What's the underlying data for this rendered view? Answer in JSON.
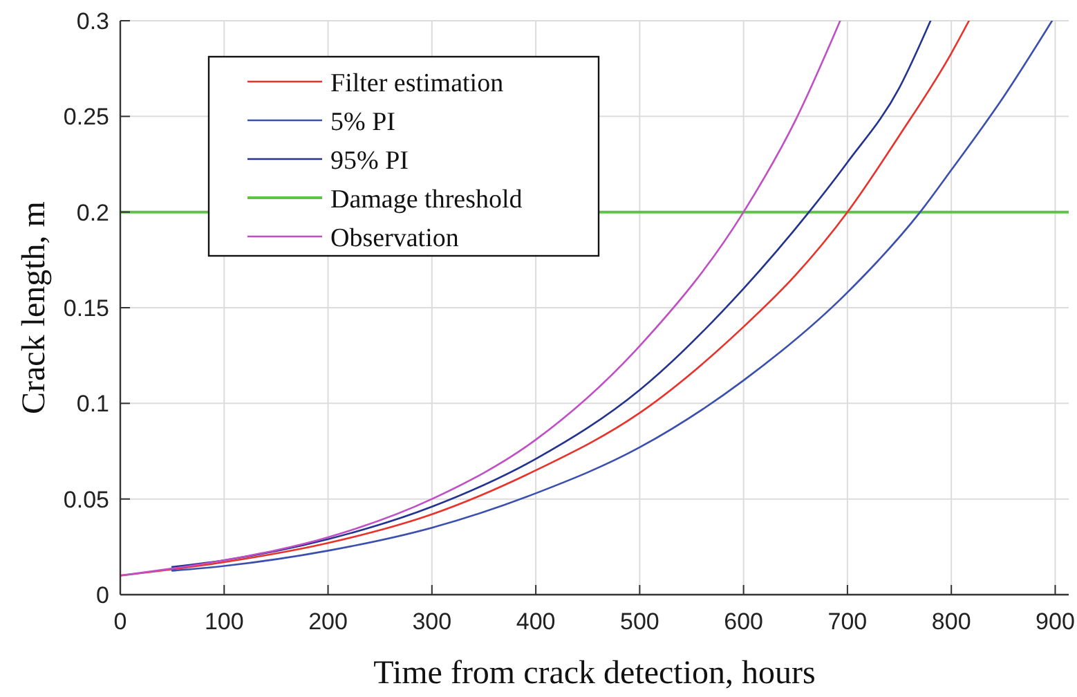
{
  "chart_data": {
    "type": "line",
    "xlabel": "Time from crack detection, hours",
    "ylabel": "Crack length, m",
    "xlim": [
      0,
      913
    ],
    "ylim": [
      0,
      0.3
    ],
    "xticks": [
      0,
      100,
      200,
      300,
      400,
      500,
      600,
      700,
      800,
      900
    ],
    "yticks": [
      0,
      0.05,
      0.1,
      0.15,
      0.2,
      0.25,
      0.3
    ],
    "grid": true,
    "legend": "top left",
    "marker": "none",
    "line_style": "solid",
    "series": [
      {
        "name": "Filter estimation",
        "color": "#e8322a",
        "x": [
          0,
          100,
          200,
          300,
          400,
          500,
          600,
          650,
          700,
          750,
          800,
          817
        ],
        "values": [
          0.01,
          0.017,
          0.027,
          0.042,
          0.065,
          0.095,
          0.14,
          0.167,
          0.2,
          0.24,
          0.283,
          0.3
        ]
      },
      {
        "name": "5% PI",
        "color": "#3a4fae",
        "x": [
          50,
          100,
          200,
          300,
          400,
          500,
          600,
          700,
          770,
          800,
          850,
          897
        ],
        "values": [
          0.0125,
          0.015,
          0.023,
          0.035,
          0.053,
          0.077,
          0.112,
          0.158,
          0.2,
          0.222,
          0.26,
          0.3
        ]
      },
      {
        "name": "95% PI",
        "color": "#23338f",
        "x": [
          50,
          100,
          200,
          300,
          400,
          500,
          600,
          663,
          700,
          750,
          780
        ],
        "values": [
          0.0145,
          0.018,
          0.029,
          0.046,
          0.071,
          0.107,
          0.16,
          0.2,
          0.226,
          0.265,
          0.3
        ]
      },
      {
        "name": "Observation",
        "color": "#c04ec4",
        "x": [
          0,
          100,
          200,
          300,
          400,
          500,
          600,
          650,
          693
        ],
        "values": [
          0.01,
          0.018,
          0.03,
          0.05,
          0.081,
          0.13,
          0.2,
          0.248,
          0.3
        ]
      }
    ],
    "ref_lines": [
      {
        "axis": "y",
        "value": 0.2,
        "label": "Damage threshold",
        "color": "#5ec448",
        "line_style": "solid"
      }
    ]
  }
}
